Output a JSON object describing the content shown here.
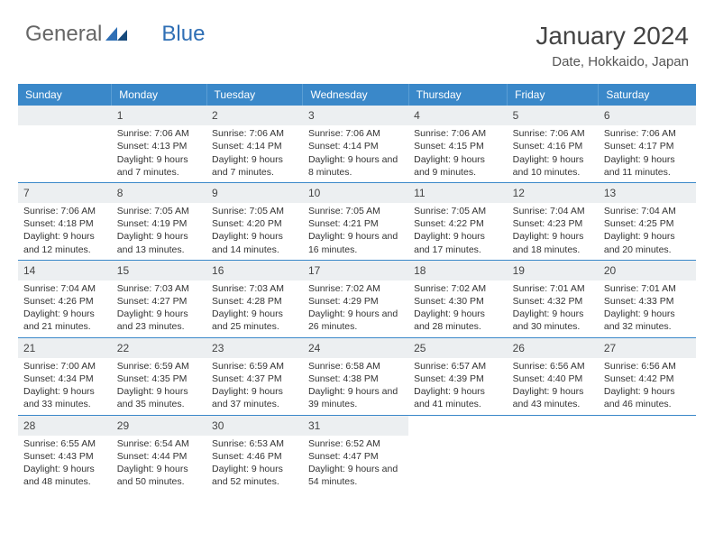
{
  "brand": {
    "part1": "General",
    "part2": "Blue"
  },
  "title": "January 2024",
  "location": "Date, Hokkaido, Japan",
  "colors": {
    "header_bg": "#3a88c9",
    "num_bg": "#eceff1",
    "divider": "#3a88c9",
    "text": "#333",
    "brand_blue": "#2f6fb5"
  },
  "weekdays": [
    "Sunday",
    "Monday",
    "Tuesday",
    "Wednesday",
    "Thursday",
    "Friday",
    "Saturday"
  ],
  "weeks": [
    [
      null,
      {
        "n": "1",
        "rise": "7:06 AM",
        "set": "4:13 PM",
        "day": "9 hours and 7 minutes."
      },
      {
        "n": "2",
        "rise": "7:06 AM",
        "set": "4:14 PM",
        "day": "9 hours and 7 minutes."
      },
      {
        "n": "3",
        "rise": "7:06 AM",
        "set": "4:14 PM",
        "day": "9 hours and 8 minutes."
      },
      {
        "n": "4",
        "rise": "7:06 AM",
        "set": "4:15 PM",
        "day": "9 hours and 9 minutes."
      },
      {
        "n": "5",
        "rise": "7:06 AM",
        "set": "4:16 PM",
        "day": "9 hours and 10 minutes."
      },
      {
        "n": "6",
        "rise": "7:06 AM",
        "set": "4:17 PM",
        "day": "9 hours and 11 minutes."
      }
    ],
    [
      {
        "n": "7",
        "rise": "7:06 AM",
        "set": "4:18 PM",
        "day": "9 hours and 12 minutes."
      },
      {
        "n": "8",
        "rise": "7:05 AM",
        "set": "4:19 PM",
        "day": "9 hours and 13 minutes."
      },
      {
        "n": "9",
        "rise": "7:05 AM",
        "set": "4:20 PM",
        "day": "9 hours and 14 minutes."
      },
      {
        "n": "10",
        "rise": "7:05 AM",
        "set": "4:21 PM",
        "day": "9 hours and 16 minutes."
      },
      {
        "n": "11",
        "rise": "7:05 AM",
        "set": "4:22 PM",
        "day": "9 hours and 17 minutes."
      },
      {
        "n": "12",
        "rise": "7:04 AM",
        "set": "4:23 PM",
        "day": "9 hours and 18 minutes."
      },
      {
        "n": "13",
        "rise": "7:04 AM",
        "set": "4:25 PM",
        "day": "9 hours and 20 minutes."
      }
    ],
    [
      {
        "n": "14",
        "rise": "7:04 AM",
        "set": "4:26 PM",
        "day": "9 hours and 21 minutes."
      },
      {
        "n": "15",
        "rise": "7:03 AM",
        "set": "4:27 PM",
        "day": "9 hours and 23 minutes."
      },
      {
        "n": "16",
        "rise": "7:03 AM",
        "set": "4:28 PM",
        "day": "9 hours and 25 minutes."
      },
      {
        "n": "17",
        "rise": "7:02 AM",
        "set": "4:29 PM",
        "day": "9 hours and 26 minutes."
      },
      {
        "n": "18",
        "rise": "7:02 AM",
        "set": "4:30 PM",
        "day": "9 hours and 28 minutes."
      },
      {
        "n": "19",
        "rise": "7:01 AM",
        "set": "4:32 PM",
        "day": "9 hours and 30 minutes."
      },
      {
        "n": "20",
        "rise": "7:01 AM",
        "set": "4:33 PM",
        "day": "9 hours and 32 minutes."
      }
    ],
    [
      {
        "n": "21",
        "rise": "7:00 AM",
        "set": "4:34 PM",
        "day": "9 hours and 33 minutes."
      },
      {
        "n": "22",
        "rise": "6:59 AM",
        "set": "4:35 PM",
        "day": "9 hours and 35 minutes."
      },
      {
        "n": "23",
        "rise": "6:59 AM",
        "set": "4:37 PM",
        "day": "9 hours and 37 minutes."
      },
      {
        "n": "24",
        "rise": "6:58 AM",
        "set": "4:38 PM",
        "day": "9 hours and 39 minutes."
      },
      {
        "n": "25",
        "rise": "6:57 AM",
        "set": "4:39 PM",
        "day": "9 hours and 41 minutes."
      },
      {
        "n": "26",
        "rise": "6:56 AM",
        "set": "4:40 PM",
        "day": "9 hours and 43 minutes."
      },
      {
        "n": "27",
        "rise": "6:56 AM",
        "set": "4:42 PM",
        "day": "9 hours and 46 minutes."
      }
    ],
    [
      {
        "n": "28",
        "rise": "6:55 AM",
        "set": "4:43 PM",
        "day": "9 hours and 48 minutes."
      },
      {
        "n": "29",
        "rise": "6:54 AM",
        "set": "4:44 PM",
        "day": "9 hours and 50 minutes."
      },
      {
        "n": "30",
        "rise": "6:53 AM",
        "set": "4:46 PM",
        "day": "9 hours and 52 minutes."
      },
      {
        "n": "31",
        "rise": "6:52 AM",
        "set": "4:47 PM",
        "day": "9 hours and 54 minutes."
      },
      null,
      null,
      null
    ]
  ],
  "labels": {
    "sunrise": "Sunrise:",
    "sunset": "Sunset:",
    "daylight": "Daylight:"
  }
}
